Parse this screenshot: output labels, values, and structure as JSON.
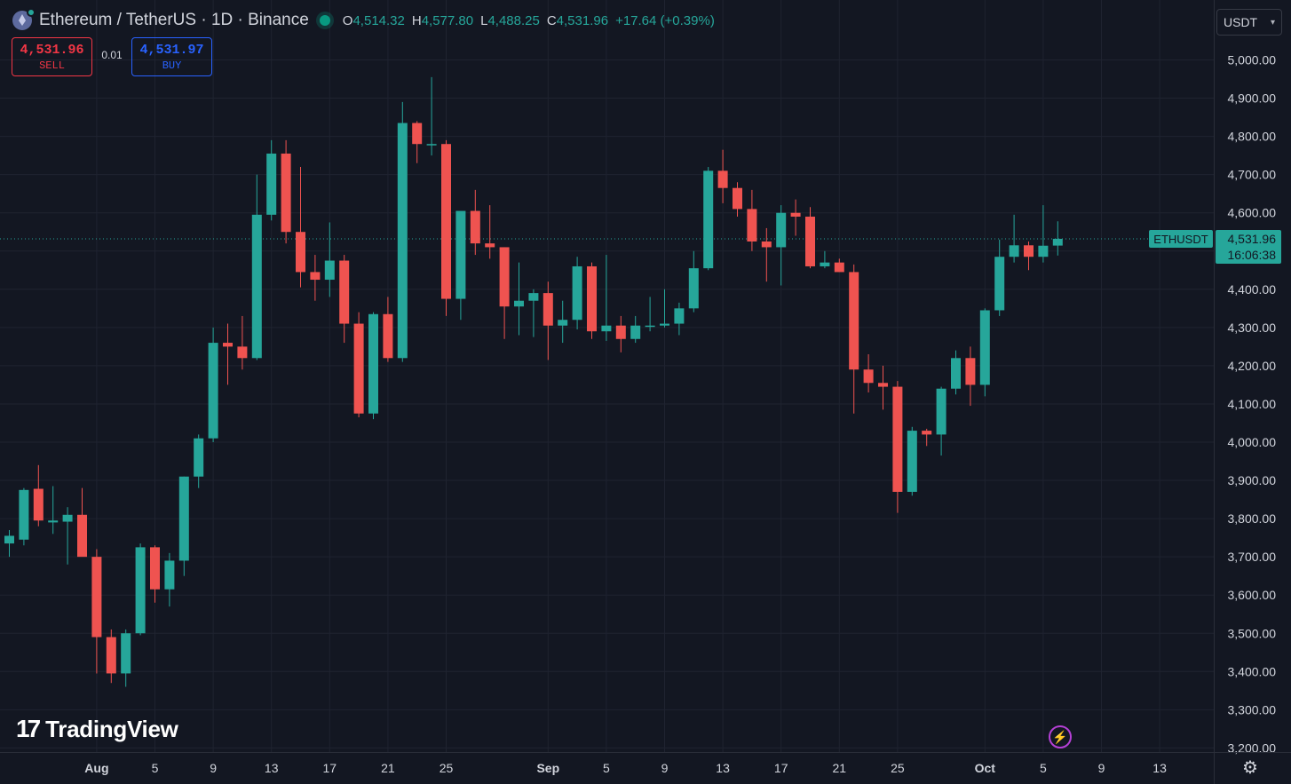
{
  "header": {
    "symbol_title": "Ethereum / TetherUS · 1D · Binance",
    "open_label": "O",
    "open_value": "4,514.32",
    "high_label": "H",
    "high_value": "4,577.80",
    "low_label": "L",
    "low_value": "4,488.25",
    "close_label": "C",
    "close_value": "4,531.96",
    "change": "+17.64 (+0.39%)"
  },
  "trade": {
    "sell_price": "4,531.96",
    "sell_label": "SELL",
    "spread": "0.01",
    "buy_price": "4,531.97",
    "buy_label": "BUY"
  },
  "currency_selector": {
    "value": "USDT"
  },
  "price_label": {
    "ticker": "ETHUSDT",
    "price": "4,531.96",
    "countdown": "16:06:38"
  },
  "branding": {
    "logo_text": "TradingView",
    "logo_mark": "17"
  },
  "icons": {
    "lightning": "lightning-icon",
    "settings": "settings-icon",
    "chevron": "chevron-down-icon"
  },
  "colors": {
    "up": "#26a69a",
    "down": "#ef5350",
    "background": "#131722",
    "grid": "#1f2330",
    "axis_text": "#d1d4dc",
    "sell": "#f23645",
    "buy": "#2962ff",
    "alert": "#b540d6"
  },
  "chart_data": {
    "type": "candlestick",
    "symbol": "ETHUSDT",
    "interval": "1D",
    "ylim": [
      3200,
      5000
    ],
    "y_ticks": [
      3200,
      3300,
      3400,
      3500,
      3600,
      3700,
      3800,
      3900,
      4000,
      4100,
      4200,
      4300,
      4400,
      4500,
      4600,
      4700,
      4800,
      4900,
      5000
    ],
    "y_tick_labels": [
      "3,200.00",
      "3,300.00",
      "3,400.00",
      "3,500.00",
      "3,600.00",
      "3,700.00",
      "3,800.00",
      "3,900.00",
      "4,000.00",
      "4,100.00",
      "4,200.00",
      "4,300.00",
      "4,400.00",
      "4,500.00",
      "4,600.00",
      "4,700.00",
      "4,800.00",
      "4,900.00",
      "5,000.00"
    ],
    "x_ticks": [
      {
        "label": "Aug",
        "index": 6,
        "bold": true
      },
      {
        "label": "5",
        "index": 10
      },
      {
        "label": "9",
        "index": 14
      },
      {
        "label": "13",
        "index": 18
      },
      {
        "label": "17",
        "index": 22
      },
      {
        "label": "21",
        "index": 26
      },
      {
        "label": "25",
        "index": 30
      },
      {
        "label": "Sep",
        "index": 37,
        "bold": true
      },
      {
        "label": "5",
        "index": 41
      },
      {
        "label": "9",
        "index": 45
      },
      {
        "label": "13",
        "index": 49
      },
      {
        "label": "17",
        "index": 53
      },
      {
        "label": "21",
        "index": 57
      },
      {
        "label": "25",
        "index": 61
      },
      {
        "label": "Oct",
        "index": 67,
        "bold": true
      },
      {
        "label": "5",
        "index": 71
      },
      {
        "label": "9",
        "index": 75
      },
      {
        "label": "13",
        "index": 79
      }
    ],
    "last_price": 4531.96,
    "candles": [
      {
        "o": 3735,
        "h": 3770,
        "l": 3700,
        "c": 3755
      },
      {
        "o": 3745,
        "h": 3880,
        "l": 3730,
        "c": 3875
      },
      {
        "o": 3878,
        "h": 3940,
        "l": 3780,
        "c": 3795
      },
      {
        "o": 3790,
        "h": 3885,
        "l": 3760,
        "c": 3795
      },
      {
        "o": 3792,
        "h": 3830,
        "l": 3680,
        "c": 3810
      },
      {
        "o": 3810,
        "h": 3880,
        "l": 3710,
        "c": 3700
      },
      {
        "o": 3700,
        "h": 3720,
        "l": 3395,
        "c": 3490
      },
      {
        "o": 3490,
        "h": 3510,
        "l": 3370,
        "c": 3395
      },
      {
        "o": 3395,
        "h": 3510,
        "l": 3360,
        "c": 3500
      },
      {
        "o": 3500,
        "h": 3735,
        "l": 3495,
        "c": 3725
      },
      {
        "o": 3725,
        "h": 3730,
        "l": 3580,
        "c": 3615
      },
      {
        "o": 3615,
        "h": 3710,
        "l": 3570,
        "c": 3690
      },
      {
        "o": 3690,
        "h": 3910,
        "l": 3650,
        "c": 3910
      },
      {
        "o": 3910,
        "h": 4020,
        "l": 3880,
        "c": 4010
      },
      {
        "o": 4010,
        "h": 4300,
        "l": 4000,
        "c": 4260
      },
      {
        "o": 4260,
        "h": 4310,
        "l": 4150,
        "c": 4250
      },
      {
        "o": 4250,
        "h": 4330,
        "l": 4190,
        "c": 4220
      },
      {
        "o": 4220,
        "h": 4700,
        "l": 4215,
        "c": 4595
      },
      {
        "o": 4595,
        "h": 4790,
        "l": 4580,
        "c": 4755
      },
      {
        "o": 4755,
        "h": 4790,
        "l": 4520,
        "c": 4550
      },
      {
        "o": 4550,
        "h": 4720,
        "l": 4405,
        "c": 4445
      },
      {
        "o": 4445,
        "h": 4490,
        "l": 4370,
        "c": 4425
      },
      {
        "o": 4425,
        "h": 4575,
        "l": 4380,
        "c": 4475
      },
      {
        "o": 4475,
        "h": 4490,
        "l": 4260,
        "c": 4310
      },
      {
        "o": 4310,
        "h": 4340,
        "l": 4065,
        "c": 4075
      },
      {
        "o": 4075,
        "h": 4340,
        "l": 4060,
        "c": 4335
      },
      {
        "o": 4335,
        "h": 4380,
        "l": 4210,
        "c": 4220
      },
      {
        "o": 4220,
        "h": 4890,
        "l": 4210,
        "c": 4835
      },
      {
        "o": 4835,
        "h": 4840,
        "l": 4730,
        "c": 4780
      },
      {
        "o": 4780,
        "h": 4955,
        "l": 4750,
        "c": 4780
      },
      {
        "o": 4780,
        "h": 4790,
        "l": 4330,
        "c": 4375
      },
      {
        "o": 4375,
        "h": 4600,
        "l": 4320,
        "c": 4605
      },
      {
        "o": 4605,
        "h": 4660,
        "l": 4490,
        "c": 4520
      },
      {
        "o": 4520,
        "h": 4620,
        "l": 4480,
        "c": 4510
      },
      {
        "o": 4510,
        "h": 4510,
        "l": 4270,
        "c": 4355
      },
      {
        "o": 4355,
        "h": 4470,
        "l": 4280,
        "c": 4370
      },
      {
        "o": 4370,
        "h": 4400,
        "l": 4275,
        "c": 4390
      },
      {
        "o": 4390,
        "h": 4420,
        "l": 4215,
        "c": 4305
      },
      {
        "o": 4305,
        "h": 4370,
        "l": 4260,
        "c": 4320
      },
      {
        "o": 4320,
        "h": 4485,
        "l": 4295,
        "c": 4460
      },
      {
        "o": 4460,
        "h": 4470,
        "l": 4270,
        "c": 4290
      },
      {
        "o": 4290,
        "h": 4490,
        "l": 4265,
        "c": 4305
      },
      {
        "o": 4305,
        "h": 4330,
        "l": 4235,
        "c": 4270
      },
      {
        "o": 4270,
        "h": 4330,
        "l": 4260,
        "c": 4305
      },
      {
        "o": 4305,
        "h": 4380,
        "l": 4290,
        "c": 4305
      },
      {
        "o": 4305,
        "h": 4400,
        "l": 4300,
        "c": 4310
      },
      {
        "o": 4310,
        "h": 4365,
        "l": 4280,
        "c": 4350
      },
      {
        "o": 4350,
        "h": 4500,
        "l": 4340,
        "c": 4455
      },
      {
        "o": 4455,
        "h": 4720,
        "l": 4450,
        "c": 4710
      },
      {
        "o": 4710,
        "h": 4765,
        "l": 4625,
        "c": 4665
      },
      {
        "o": 4665,
        "h": 4680,
        "l": 4590,
        "c": 4610
      },
      {
        "o": 4610,
        "h": 4660,
        "l": 4500,
        "c": 4525
      },
      {
        "o": 4525,
        "h": 4560,
        "l": 4420,
        "c": 4510
      },
      {
        "o": 4510,
        "h": 4620,
        "l": 4410,
        "c": 4600
      },
      {
        "o": 4600,
        "h": 4635,
        "l": 4540,
        "c": 4590
      },
      {
        "o": 4590,
        "h": 4615,
        "l": 4455,
        "c": 4460
      },
      {
        "o": 4460,
        "h": 4500,
        "l": 4455,
        "c": 4470
      },
      {
        "o": 4470,
        "h": 4480,
        "l": 4445,
        "c": 4445
      },
      {
        "o": 4445,
        "h": 4465,
        "l": 4075,
        "c": 4190
      },
      {
        "o": 4190,
        "h": 4230,
        "l": 4130,
        "c": 4155
      },
      {
        "o": 4155,
        "h": 4200,
        "l": 4085,
        "c": 4145
      },
      {
        "o": 4145,
        "h": 4160,
        "l": 3815,
        "c": 3870
      },
      {
        "o": 3870,
        "h": 4040,
        "l": 3860,
        "c": 4030
      },
      {
        "o": 4030,
        "h": 4035,
        "l": 3990,
        "c": 4020
      },
      {
        "o": 4020,
        "h": 4145,
        "l": 3965,
        "c": 4140
      },
      {
        "o": 4140,
        "h": 4240,
        "l": 4125,
        "c": 4220
      },
      {
        "o": 4220,
        "h": 4250,
        "l": 4095,
        "c": 4150
      },
      {
        "o": 4150,
        "h": 4350,
        "l": 4120,
        "c": 4345
      },
      {
        "o": 4345,
        "h": 4530,
        "l": 4330,
        "c": 4485
      },
      {
        "o": 4485,
        "h": 4595,
        "l": 4470,
        "c": 4515
      },
      {
        "o": 4515,
        "h": 4525,
        "l": 4450,
        "c": 4485
      },
      {
        "o": 4485,
        "h": 4620,
        "l": 4470,
        "c": 4514
      },
      {
        "o": 4514.32,
        "h": 4577.8,
        "l": 4488.25,
        "c": 4531.96
      }
    ]
  }
}
